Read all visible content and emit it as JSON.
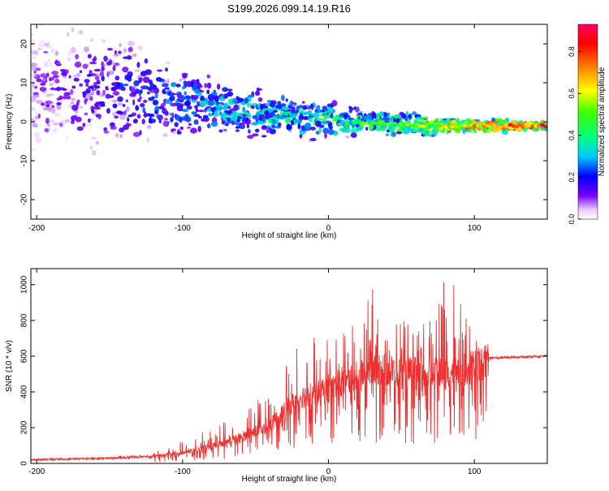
{
  "figure": {
    "title": "S199.2026.099.14.19.R16"
  },
  "chart_data": [
    {
      "type": "heatmap",
      "name": "spectrogram",
      "xlabel": "Height of straight line (km)",
      "ylabel": "Frequency (Hz)",
      "xlim": [
        -204,
        150
      ],
      "ylim": [
        -25,
        25
      ],
      "xticks": [
        -200,
        -100,
        0,
        100
      ],
      "yticks": [
        -20,
        -10,
        0,
        10,
        20
      ],
      "colorbar": {
        "label": "Normalized spectral amplitude",
        "range": [
          0,
          0.93
        ],
        "ticks": [
          "0.0",
          "0.2",
          "0.4",
          "0.6",
          "0.8"
        ],
        "tick_values": [
          0,
          0.2,
          0.4,
          0.6,
          0.8
        ]
      },
      "trend": [
        {
          "x": -204,
          "freq": 8,
          "spread": 16,
          "amp": 0.1
        },
        {
          "x": -150,
          "freq": 8,
          "spread": 14,
          "amp": 0.2
        },
        {
          "x": -100,
          "freq": 5,
          "spread": 8,
          "amp": 0.3
        },
        {
          "x": -60,
          "freq": 3,
          "spread": 6,
          "amp": 0.35
        },
        {
          "x": -20,
          "freq": 1,
          "spread": 5,
          "amp": 0.4
        },
        {
          "x": 20,
          "freq": 0,
          "spread": 3,
          "amp": 0.5
        },
        {
          "x": 60,
          "freq": -1,
          "spread": 2.5,
          "amp": 0.6
        },
        {
          "x": 100,
          "freq": -1,
          "spread": 1.5,
          "amp": 0.75
        },
        {
          "x": 150,
          "freq": -1,
          "spread": 1,
          "amp": 0.9
        }
      ]
    },
    {
      "type": "line",
      "name": "snr",
      "xlabel": "Height of straight line (km)",
      "ylabel": "SNR (10 * v/v)",
      "xlim": [
        -204,
        150
      ],
      "ylim": [
        0,
        1090
      ],
      "xticks": [
        -200,
        -100,
        0,
        100
      ],
      "yticks": [
        0,
        200,
        400,
        600,
        800,
        1000
      ],
      "color": "#f03030",
      "envelope": [
        {
          "x": -204,
          "base": 20,
          "peak": 30
        },
        {
          "x": -150,
          "base": 30,
          "peak": 50
        },
        {
          "x": -120,
          "base": 40,
          "peak": 60
        },
        {
          "x": -100,
          "base": 60,
          "peak": 130
        },
        {
          "x": -80,
          "base": 100,
          "peak": 200
        },
        {
          "x": -60,
          "base": 150,
          "peak": 300
        },
        {
          "x": -40,
          "base": 220,
          "peak": 400
        },
        {
          "x": -20,
          "base": 380,
          "peak": 700
        },
        {
          "x": 0,
          "base": 420,
          "peak": 750
        },
        {
          "x": 20,
          "base": 500,
          "peak": 800
        },
        {
          "x": 32,
          "base": 550,
          "peak": 1010
        },
        {
          "x": 50,
          "base": 520,
          "peak": 800
        },
        {
          "x": 70,
          "base": 520,
          "peak": 850
        },
        {
          "x": 82,
          "base": 500,
          "peak": 1090
        },
        {
          "x": 100,
          "base": 560,
          "peak": 700
        },
        {
          "x": 110,
          "base": 590,
          "peak": 620
        },
        {
          "x": 150,
          "base": 600,
          "peak": 620
        }
      ]
    }
  ]
}
